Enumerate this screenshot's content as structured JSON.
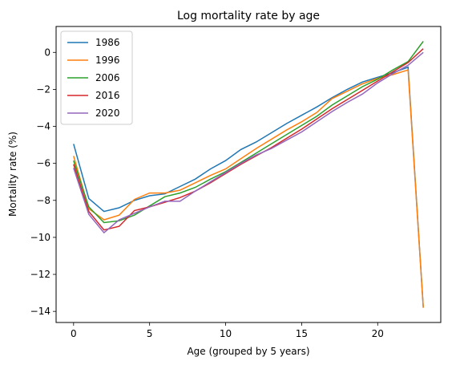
{
  "chart_data": {
    "type": "line",
    "title": "Log mortality rate by age",
    "xlabel": "Age (grouped by 5 years)",
    "ylabel": "Mortality rate (%)",
    "xlim": [
      -1.15,
      24.15
    ],
    "ylim": [
      -14.6,
      1.4
    ],
    "xticks": [
      0,
      5,
      10,
      15,
      20
    ],
    "yticks": [
      0,
      -2,
      -4,
      -6,
      -8,
      -10,
      -12,
      -14
    ],
    "grid": false,
    "legend_position": "top-left",
    "x": [
      0,
      1,
      2,
      3,
      4,
      5,
      6,
      7,
      8,
      9,
      10,
      11,
      12,
      13,
      14,
      15,
      16,
      17,
      18,
      19,
      20,
      21,
      22,
      23
    ],
    "series": [
      {
        "name": "1986",
        "color": "#1f77b4",
        "values": [
          -4.95,
          -7.9,
          -8.6,
          -8.4,
          -8.0,
          -7.75,
          -7.65,
          -7.25,
          -6.85,
          -6.3,
          -5.85,
          -5.25,
          -4.85,
          -4.35,
          -3.85,
          -3.4,
          -2.95,
          -2.45,
          -2.0,
          -1.6,
          -1.35,
          -1.1,
          -0.8,
          -13.8
        ]
      },
      {
        "name": "1996",
        "color": "#ff7f0e",
        "values": [
          -5.6,
          -8.45,
          -9.05,
          -8.8,
          -7.95,
          -7.6,
          -7.6,
          -7.45,
          -7.05,
          -6.65,
          -6.3,
          -5.75,
          -5.2,
          -4.7,
          -4.2,
          -3.75,
          -3.25,
          -2.5,
          -2.1,
          -1.7,
          -1.4,
          -1.2,
          -0.95,
          -13.8
        ]
      },
      {
        "name": "2006",
        "color": "#2ca02c",
        "values": [
          -5.85,
          -8.35,
          -9.2,
          -9.1,
          -8.8,
          -8.3,
          -7.8,
          -7.6,
          -7.3,
          -6.85,
          -6.45,
          -5.95,
          -5.45,
          -4.95,
          -4.45,
          -3.95,
          -3.45,
          -2.85,
          -2.35,
          -1.85,
          -1.45,
          -0.95,
          -0.5,
          0.6
        ]
      },
      {
        "name": "2016",
        "color": "#d62728",
        "values": [
          -6.05,
          -8.6,
          -9.6,
          -9.4,
          -8.55,
          -8.35,
          -8.1,
          -7.85,
          -7.5,
          -7.05,
          -6.55,
          -6.05,
          -5.6,
          -5.15,
          -4.65,
          -4.15,
          -3.6,
          -3.05,
          -2.55,
          -2.05,
          -1.55,
          -1.05,
          -0.55,
          0.2
        ]
      },
      {
        "name": "2020",
        "color": "#9467bd",
        "values": [
          -6.25,
          -8.75,
          -9.75,
          -9.05,
          -8.7,
          -8.35,
          -8.05,
          -8.05,
          -7.5,
          -7.0,
          -6.5,
          -6.0,
          -5.55,
          -5.2,
          -4.75,
          -4.3,
          -3.75,
          -3.2,
          -2.7,
          -2.25,
          -1.65,
          -1.15,
          -0.7,
          0.0
        ]
      }
    ]
  }
}
